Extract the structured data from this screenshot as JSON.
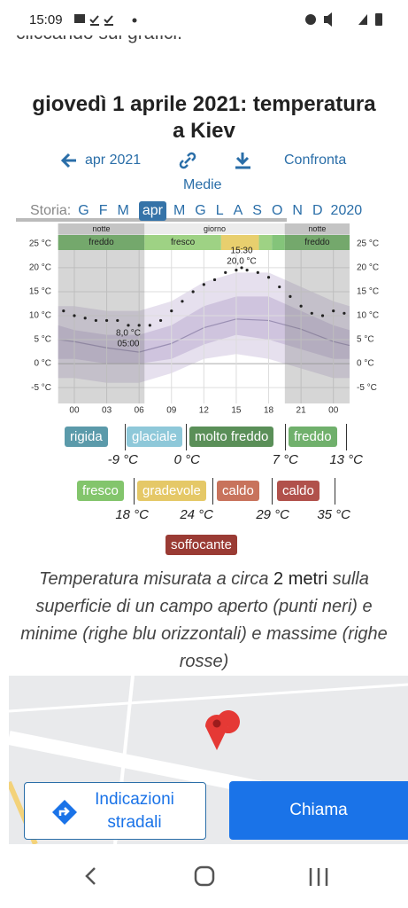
{
  "status_bar": {
    "time": "15:09"
  },
  "top_text": "cliccando sui grafici.",
  "title": {
    "line1": "giovedì 1 aprile 2021: temperatura",
    "line2": "a Kiev"
  },
  "nav": {
    "month": "apr 2021",
    "compare": "Confronta",
    "averages": "Medie"
  },
  "months": {
    "label": "Storia:",
    "items": [
      "G",
      "F",
      "M",
      "apr",
      "M",
      "G",
      "L",
      "A",
      "S",
      "O",
      "N",
      "D",
      "2020"
    ],
    "selected": 3
  },
  "chart_data": {
    "type": "line",
    "x": [
      -1,
      0,
      1,
      2,
      3,
      4,
      5,
      6,
      7,
      8,
      9,
      10,
      11,
      12,
      13,
      14,
      15,
      15.5,
      16,
      17,
      18,
      19,
      20,
      21,
      22,
      23,
      24,
      25
    ],
    "series": [
      {
        "color": "#222222",
        "values": [
          11,
          10,
          9.5,
          9,
          9,
          9,
          8,
          8,
          8,
          9,
          11,
          13,
          15,
          16.5,
          17.5,
          19,
          19.5,
          20,
          19.5,
          19,
          18,
          16,
          14,
          12,
          10.5,
          10,
          11,
          10.5
        ]
      }
    ],
    "xlim": [
      -1.5,
      25.5
    ],
    "ylim": [
      -8.3,
      29.6
    ],
    "xticks": [
      {
        "value": 0,
        "label": "00"
      },
      {
        "value": 3,
        "label": "03"
      },
      {
        "value": 6,
        "label": "06"
      },
      {
        "value": 9,
        "label": "09"
      },
      12,
      15,
      18,
      21,
      {
        "value": 24,
        "label": "00"
      }
    ],
    "yticks": [
      {
        "value": -5,
        "label": "-5 °C"
      },
      {
        "value": 0,
        "label": "0 °C"
      },
      {
        "value": 5,
        "label": "5 °C"
      },
      {
        "value": 10,
        "label": "10 °C"
      },
      {
        "value": 15,
        "label": "15 °C"
      },
      {
        "value": 20,
        "label": "20 °C"
      },
      {
        "value": 25,
        "label": "25 °C"
      }
    ],
    "band_x": [
      -1.5,
      0,
      3,
      6,
      9,
      12,
      15,
      18,
      21,
      24,
      25.5
    ],
    "bands": [
      {
        "color": "#e6e0ee",
        "low": [
          -3,
          -3,
          -4,
          -4,
          -2,
          1,
          2,
          1,
          -1,
          -3,
          -3
        ],
        "high": [
          12,
          12,
          11,
          11,
          13,
          17,
          19,
          19,
          16,
          13,
          12
        ]
      },
      {
        "color": "#cfc4de",
        "low": [
          1,
          1,
          0,
          0,
          1,
          4,
          6,
          5,
          3,
          1,
          1
        ],
        "high": [
          8,
          7,
          6,
          6,
          8,
          12,
          14,
          14,
          11,
          8,
          7
        ]
      }
    ],
    "mean": {
      "color": "#9a8fb3",
      "values": [
        5,
        4.6,
        3.3,
        2.4,
        4.2,
        7.5,
        9.3,
        9,
        7.2,
        4.6,
        3.8
      ]
    },
    "periods": [
      {
        "label": "notte",
        "start": -1.5,
        "end": 6.5
      },
      {
        "label": "giorno",
        "start": 6.5,
        "end": 19.5
      },
      {
        "label": "notte",
        "start": 19.5,
        "end": 25.5
      }
    ],
    "bars": [
      {
        "label": "freddo",
        "start": -1.5,
        "end": 6.5,
        "color": "#74a86c"
      },
      {
        "label": "fresco",
        "start": 6.5,
        "end": 13.6,
        "color": "#9ed284"
      },
      {
        "start": 13.6,
        "end": 17.1,
        "color": "#e8cf6e"
      },
      {
        "start": 17.1,
        "end": 18.3,
        "color": "#9ed284"
      },
      {
        "start": 18.3,
        "end": 19.5,
        "color": "#84c47a"
      },
      {
        "label": "freddo",
        "start": 19.5,
        "end": 25.5,
        "color": "#74a86c"
      }
    ],
    "annotations": [
      {
        "lines": [
          "8,0 °C",
          "05:00"
        ],
        "x": 5,
        "y": 8,
        "side": "below"
      },
      {
        "lines": [
          "15:30",
          "20,0 °C"
        ],
        "x": 15.5,
        "y": 20,
        "side": "above"
      }
    ]
  },
  "legend": {
    "chips": [
      {
        "label": "rigida",
        "color": "#5b9aaa"
      },
      {
        "label": "glaciale",
        "color": "#8ec8d9"
      },
      {
        "label": "molto freddo",
        "color": "#5a8f58"
      },
      {
        "label": "freddo",
        "color": "#70b06c"
      },
      {
        "label": "fresco",
        "color": "#83c56c"
      },
      {
        "label": "gradevole",
        "color": "#e5c867"
      },
      {
        "label": "caldo",
        "color": "#c8735c"
      },
      {
        "label": "caldo",
        "color": "#b1514b"
      },
      {
        "label": "soffocante",
        "color": "#9a3b34"
      }
    ],
    "thresholds": [
      "-9 °C",
      "0 °C",
      "7 °C",
      "13 °C",
      "18 °C",
      "24 °C",
      "29 °C",
      "35 °C"
    ]
  },
  "note": {
    "before": "Temperatura misurata a circa ",
    "bold": "2 metri",
    "after": " sulla superficie di un campo aperto (punti neri) e minime (righe blu orizzontali) e massime (righe rosse)"
  },
  "buttons": {
    "directions": "Indicazioni stradali",
    "call": "Chiama"
  }
}
